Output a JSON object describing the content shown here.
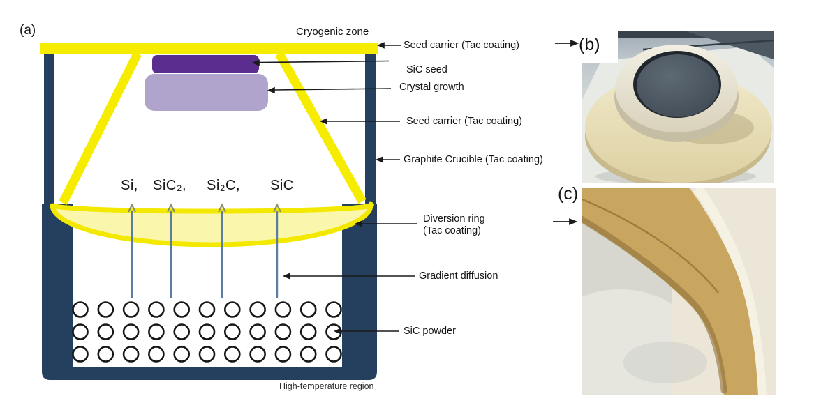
{
  "panel_a": {
    "label": "(a)",
    "top_zone_label": "Cryogenic zone",
    "bottom_zone_label": "High-temperature region",
    "gas_species": [
      "Si,",
      "SiC₂,",
      "Si₂C,",
      "SiC"
    ],
    "callouts": {
      "seed_carrier_top": "Seed carrier (Tac coating)",
      "sic_seed": "SiC seed",
      "crystal_growth": "Crystal growth",
      "seed_carrier_cone": "Seed carrier (Tac coating)",
      "graphite_crucible": "Graphite Crucible (Tac coating)",
      "diversion_ring_line1": "Diversion ring",
      "diversion_ring_line2": "(Tac coating)",
      "gradient_diffusion": "Gradient diffusion",
      "sic_powder": "SiC powder"
    },
    "powder_grid": {
      "rows": 3,
      "cols": 11
    }
  },
  "panel_b": {
    "label": "(b)"
  },
  "panel_c": {
    "label": "(c)"
  },
  "colors": {
    "crucible_navy": "#24405e",
    "carrier_yellow": "#f6ec00",
    "diversion_ring_fill": "#faf6ac",
    "sic_seed_purple": "#5a2d8e",
    "crystal_growth_lavender": "#b0a3cc",
    "gas_arrow_blue": "#5d7da0",
    "photo_ring_tan": "#c9a65f",
    "photo_ring_cream": "#eee7c6",
    "photo_seed_gray": "#434d57"
  }
}
